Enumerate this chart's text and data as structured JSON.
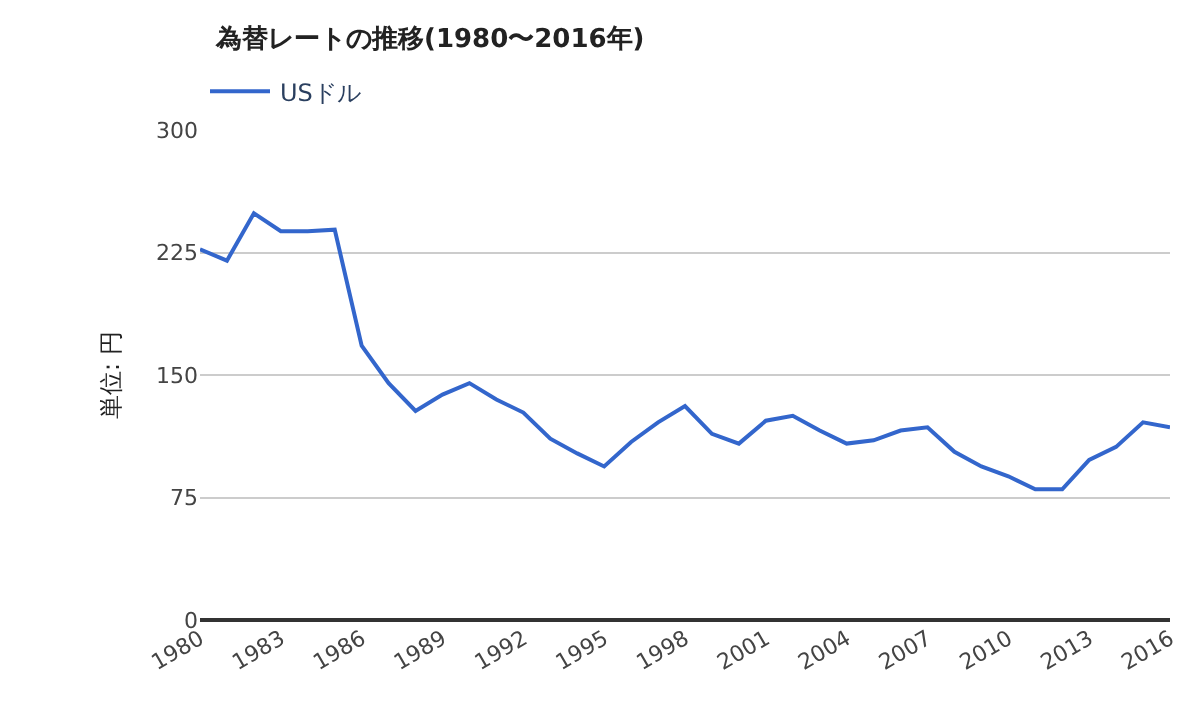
{
  "chart_data": {
    "type": "line",
    "title": "為替レートの推移(1980〜2016年)",
    "ylabel": "単位: 円",
    "x": [
      1980,
      1981,
      1982,
      1983,
      1984,
      1985,
      1986,
      1987,
      1988,
      1989,
      1990,
      1991,
      1992,
      1993,
      1994,
      1995,
      1996,
      1997,
      1998,
      1999,
      2000,
      2001,
      2002,
      2003,
      2004,
      2005,
      2006,
      2007,
      2008,
      2009,
      2010,
      2011,
      2012,
      2013,
      2014,
      2015,
      2016
    ],
    "series": [
      {
        "name": "USドル",
        "color": "#3366cc",
        "values": [
          227,
          220,
          249,
          238,
          238,
          239,
          168,
          145,
          128,
          138,
          145,
          135,
          127,
          111,
          102,
          94,
          109,
          121,
          131,
          114,
          108,
          122,
          125,
          116,
          108,
          110,
          116,
          118,
          103,
          94,
          88,
          80,
          80,
          98,
          106,
          121,
          118
        ]
      }
    ],
    "xlim": [
      1980,
      2016
    ],
    "xticks": [
      1980,
      1983,
      1986,
      1989,
      1992,
      1995,
      1998,
      2001,
      2004,
      2007,
      2010,
      2013,
      2016
    ],
    "ylim": [
      0,
      300
    ],
    "yticks": [
      0,
      75,
      150,
      225,
      300
    ],
    "grid": "y",
    "legend": "top left",
    "marker": "none",
    "line_style": "solid"
  }
}
